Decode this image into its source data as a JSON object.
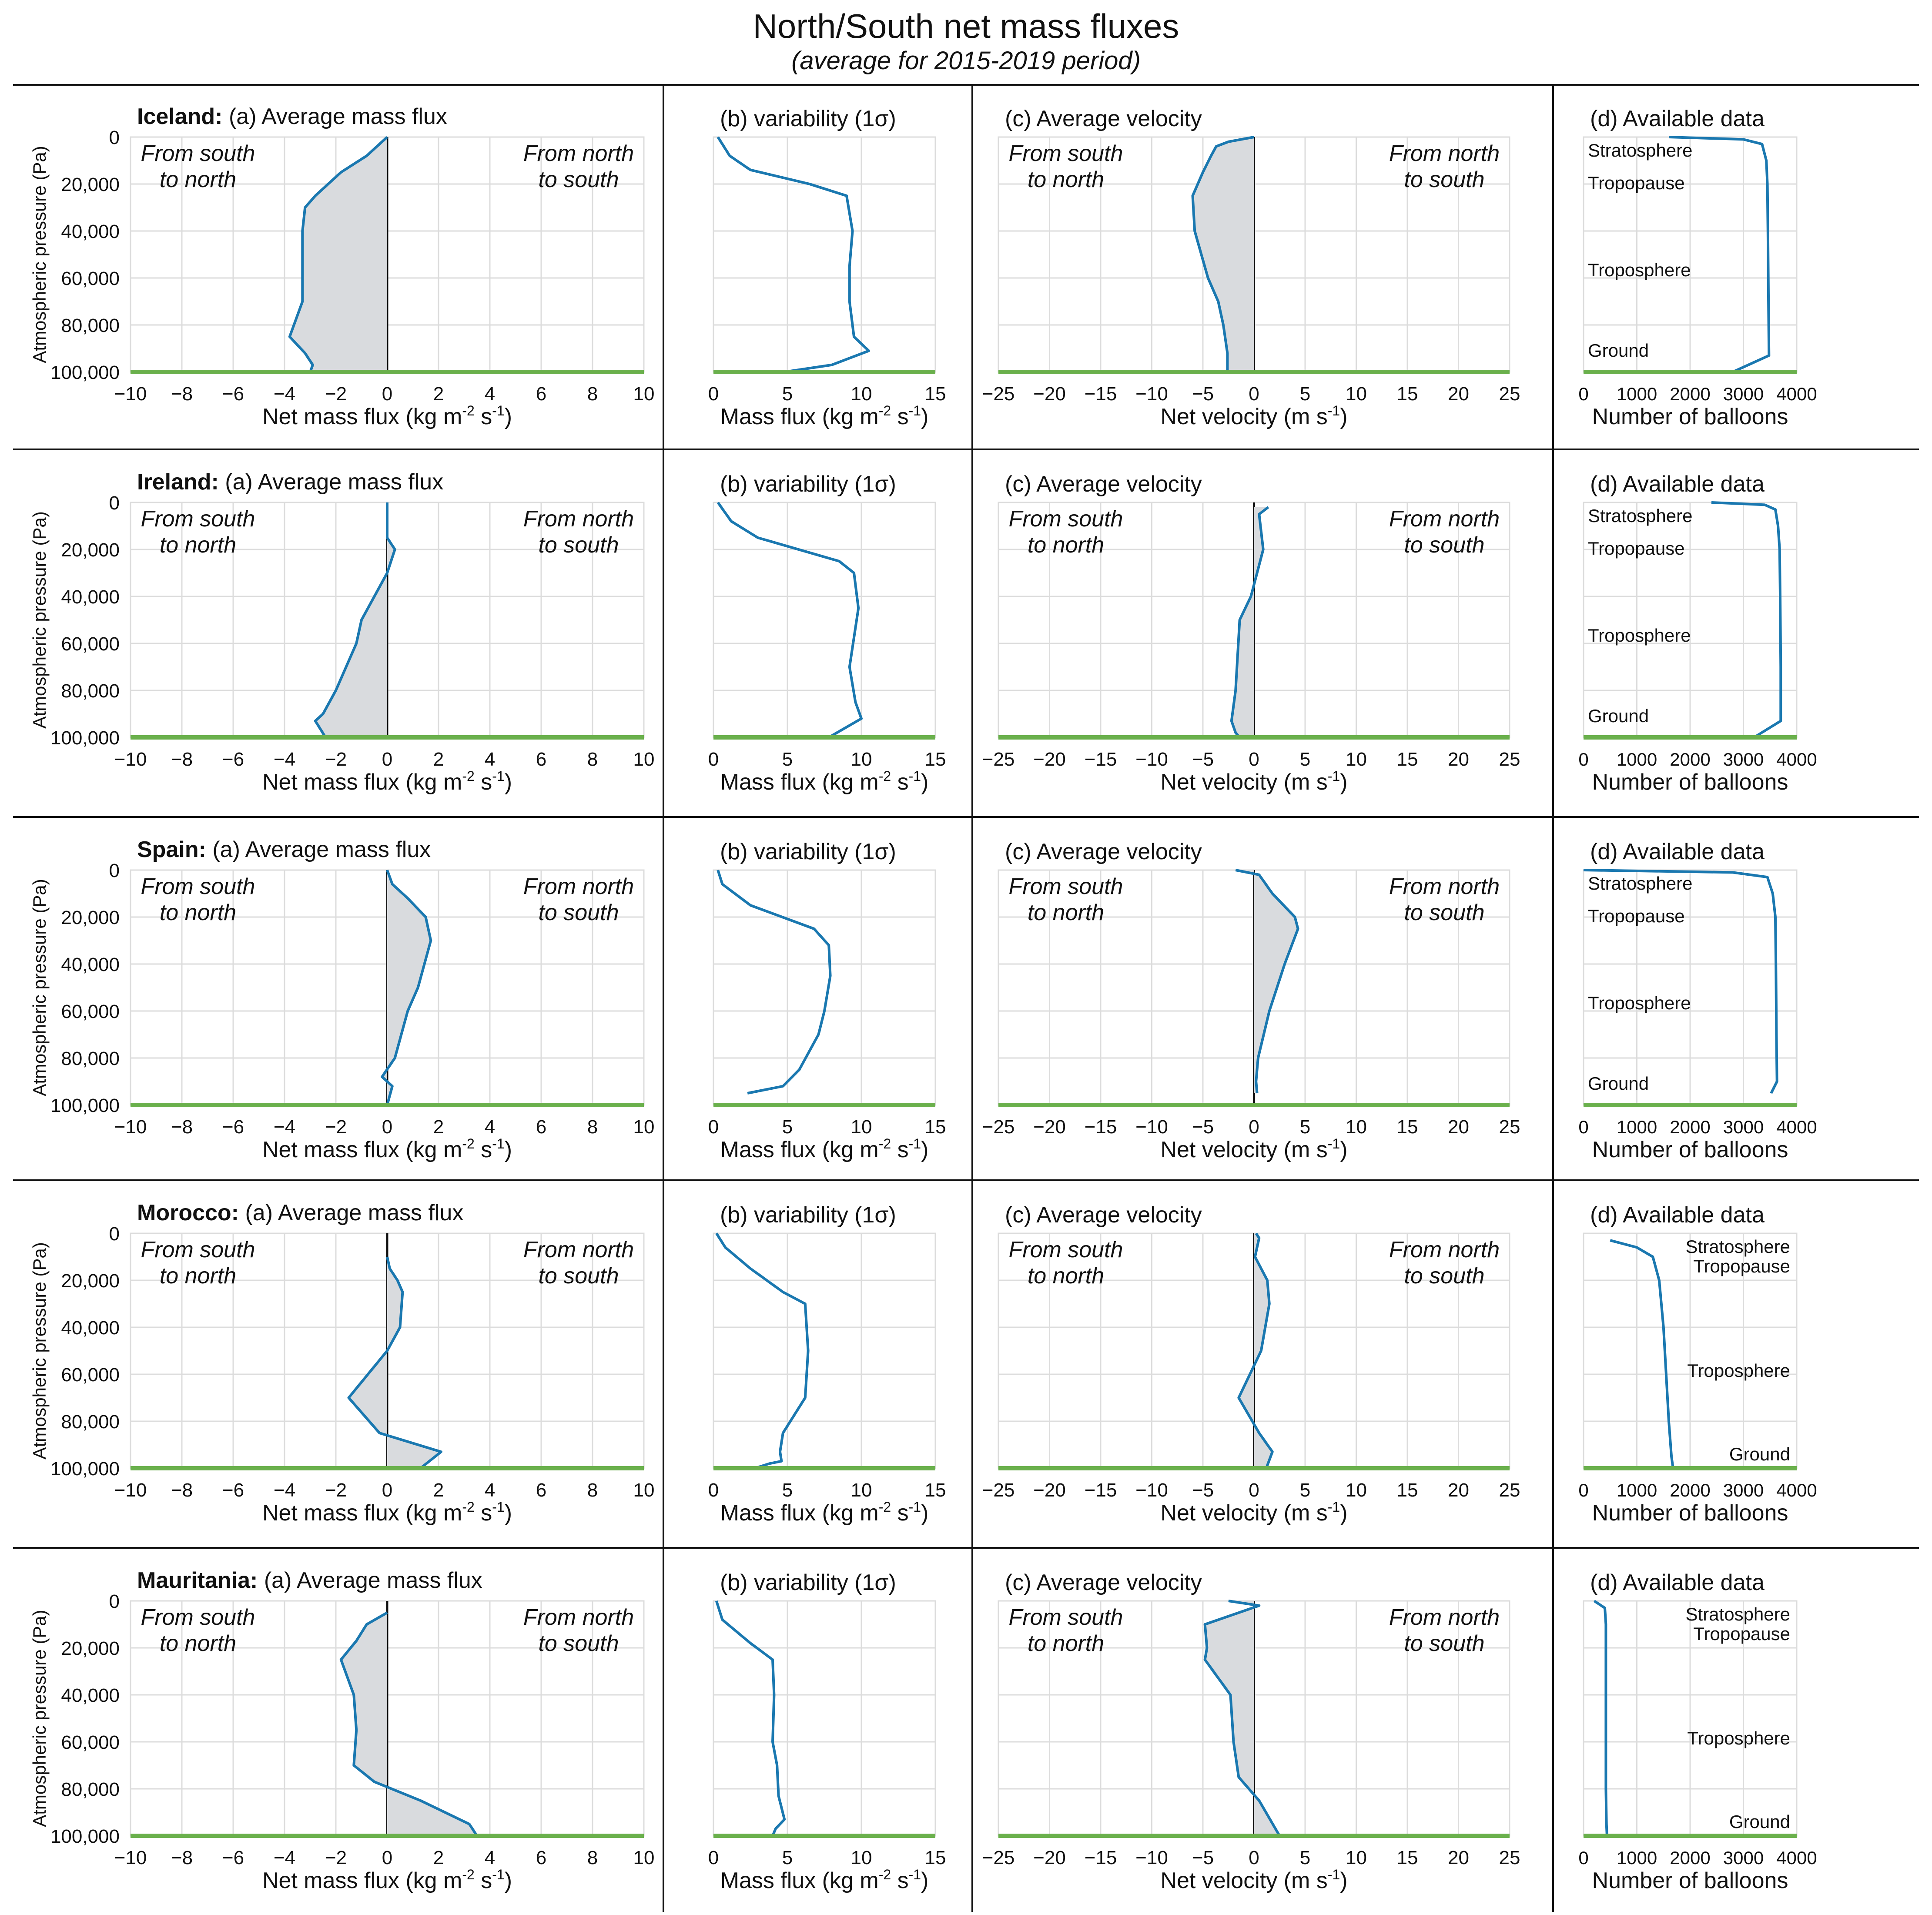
{
  "title": "North/South net mass fluxes",
  "subtitle": "(average for 2015-2019 period)",
  "colors": {
    "line": "#1a78b0",
    "fill": "#d9dbde",
    "ground": "#6ab04c",
    "grid": "#dcdcdc",
    "axis": "#111111",
    "text": "#111111"
  },
  "labels": {
    "ylabel": "Atmospheric pressure (Pa)",
    "from_south": [
      "From south",
      "to north"
    ],
    "from_north": [
      "From north",
      "to south"
    ],
    "panel_b_title": "(b) variability (1σ)",
    "panel_c_title": "(c) Average velocity",
    "panel_d_title": "(d) Available data",
    "panel_a_suffix": "(a) Average mass flux"
  },
  "chart_data": [
    {
      "country": "Iceland:",
      "a": {
        "type": "line",
        "title": "(a) Average mass flux",
        "xlabel": [
          "Net mass flux (kg m",
          "-2",
          " s",
          "-1",
          ")"
        ],
        "xlim": [
          -10,
          10
        ],
        "xticks": [
          "−10",
          "−8",
          "−6",
          "−4",
          "−2",
          "0",
          "2",
          "4",
          "6",
          "8",
          "10"
        ],
        "ylim": [
          0,
          100000
        ],
        "yticks": [
          "0",
          "20,000",
          "40,000",
          "60,000",
          "80,000",
          "100,000"
        ],
        "x": [
          0,
          -0.8,
          -1.8,
          -2.8,
          -3.2,
          -3.3,
          -3.3,
          -3.3,
          -3.8,
          -3.2,
          -2.9,
          -3.0
        ],
        "y": [
          0,
          8000,
          15000,
          25000,
          30000,
          40000,
          55000,
          70000,
          85000,
          92000,
          97000,
          100000
        ]
      },
      "b": {
        "type": "line",
        "title": "(b) variability (1σ)",
        "xlabel": [
          "Mass flux (kg m",
          "-2",
          " s",
          "-1",
          ")"
        ],
        "xlim": [
          0,
          15
        ],
        "xticks": [
          "0",
          "5",
          "10",
          "15"
        ],
        "ylim": [
          0,
          100000
        ],
        "x": [
          0.3,
          1.1,
          2.5,
          6.5,
          9.0,
          9.4,
          9.2,
          9.2,
          9.5,
          10.5,
          8.0,
          4.8
        ],
        "y": [
          0,
          8000,
          14000,
          20000,
          25000,
          40000,
          55000,
          70000,
          85000,
          91000,
          97000,
          100000
        ]
      },
      "c": {
        "type": "line",
        "title": "(c) Average velocity",
        "xlabel": [
          "Net velocity (m s",
          "-1",
          ")"
        ],
        "xlim": [
          -25,
          25
        ],
        "xticks": [
          "−25",
          "−20",
          "−15",
          "−10",
          "−5",
          "0",
          "5",
          "10",
          "15",
          "20",
          "25"
        ],
        "ylim": [
          0,
          100000
        ],
        "x": [
          0,
          -2.5,
          -3.7,
          -4.2,
          -5.0,
          -6.0,
          -5.8,
          -4.5,
          -3.5,
          -3.0,
          -2.6,
          -2.6
        ],
        "y": [
          0,
          2000,
          4000,
          8000,
          15000,
          25000,
          40000,
          60000,
          70000,
          80000,
          92000,
          100000
        ]
      },
      "d": {
        "type": "line",
        "title": "(d) Available data",
        "xlabel": [
          "Number of balloons"
        ],
        "xlim": [
          0,
          4000
        ],
        "xticks": [
          "0",
          "1000",
          "2000",
          "3000",
          "4000"
        ],
        "ylim": [
          0,
          100000
        ],
        "x": [
          1600,
          3000,
          3350,
          3430,
          3450,
          3460,
          3470,
          3480,
          2800
        ],
        "y": [
          0,
          1000,
          3000,
          10000,
          20000,
          40000,
          70000,
          93000,
          100000
        ],
        "layers": [
          "Stratosphere",
          "Tropopause",
          "Troposphere",
          "Ground"
        ],
        "layer_side": "left"
      }
    },
    {
      "country": "Ireland:",
      "a": {
        "type": "line",
        "title": "(a) Average mass flux",
        "xlabel": [
          "Net mass flux (kg m",
          "-2",
          " s",
          "-1",
          ")"
        ],
        "xlim": [
          -10,
          10
        ],
        "xticks": [
          "−10",
          "−8",
          "−6",
          "−4",
          "−2",
          "0",
          "2",
          "4",
          "6",
          "8",
          "10"
        ],
        "ylim": [
          0,
          100000
        ],
        "yticks": [
          "0",
          "20,000",
          "40,000",
          "60,000",
          "80,000",
          "100,000"
        ],
        "x": [
          0,
          0,
          0.3,
          0,
          -0.5,
          -1.0,
          -1.2,
          -2.0,
          -2.5,
          -2.8,
          -2.4
        ],
        "y": [
          0,
          15000,
          20000,
          30000,
          40000,
          50000,
          60000,
          80000,
          90000,
          93000,
          100000
        ]
      },
      "b": {
        "type": "line",
        "title": "(b) variability (1σ)",
        "xlabel": [
          "Mass flux (kg m",
          "-2",
          " s",
          "-1",
          ")"
        ],
        "xlim": [
          0,
          15
        ],
        "xticks": [
          "0",
          "5",
          "10",
          "15"
        ],
        "ylim": [
          0,
          100000
        ],
        "x": [
          0.3,
          1.2,
          3.0,
          8.5,
          9.5,
          9.8,
          9.2,
          9.6,
          10.0,
          7.8
        ],
        "y": [
          0,
          8000,
          15000,
          25000,
          30000,
          45000,
          70000,
          85000,
          92000,
          100000
        ]
      },
      "c": {
        "type": "line",
        "title": "(c) Average velocity",
        "xlabel": [
          "Net velocity (m s",
          "-1",
          ")"
        ],
        "xlim": [
          -25,
          25
        ],
        "xticks": [
          "−25",
          "−20",
          "−15",
          "−10",
          "−5",
          "0",
          "5",
          "10",
          "15",
          "20",
          "25"
        ],
        "ylim": [
          0,
          100000
        ],
        "x": [
          1.4,
          0.5,
          0.9,
          0.3,
          -0.3,
          -1.4,
          -1.6,
          -1.8,
          -2.2,
          -1.8,
          -1.4
        ],
        "y": [
          2000,
          5000,
          20000,
          30000,
          40000,
          50000,
          65000,
          80000,
          93000,
          98000,
          100000
        ]
      },
      "d": {
        "type": "line",
        "title": "(d) Available data",
        "xlabel": [
          "Number of balloons"
        ],
        "xlim": [
          0,
          4000
        ],
        "xticks": [
          "0",
          "1000",
          "2000",
          "3000",
          "4000"
        ],
        "ylim": [
          0,
          100000
        ],
        "x": [
          2400,
          3400,
          3600,
          3650,
          3680,
          3690,
          3700,
          3700,
          3200
        ],
        "y": [
          0,
          1000,
          3000,
          10000,
          20000,
          40000,
          70000,
          93000,
          100000
        ],
        "layers": [
          "Stratosphere",
          "Tropopause",
          "Troposphere",
          "Ground"
        ],
        "layer_side": "left"
      }
    },
    {
      "country": "Spain:",
      "a": {
        "type": "line",
        "title": "(a) Average mass flux",
        "xlabel": [
          "Net mass flux (kg m",
          "-2",
          " s",
          "-1",
          ")"
        ],
        "xlim": [
          -10,
          10
        ],
        "xticks": [
          "−10",
          "−8",
          "−6",
          "−4",
          "−2",
          "0",
          "2",
          "4",
          "6",
          "8",
          "10"
        ],
        "ylim": [
          0,
          100000
        ],
        "yticks": [
          "0",
          "20,000",
          "40,000",
          "60,000",
          "80,000",
          "100,000"
        ],
        "x": [
          0,
          0.2,
          0.8,
          1.5,
          1.7,
          1.2,
          0.8,
          0.3,
          -0.2,
          0.2,
          0
        ],
        "y": [
          0,
          6000,
          12000,
          20000,
          30000,
          50000,
          60000,
          80000,
          88000,
          92000,
          100000
        ]
      },
      "b": {
        "type": "line",
        "title": "(b) variability (1σ)",
        "xlabel": [
          "Mass flux (kg m",
          "-2",
          " s",
          "-1",
          ")"
        ],
        "xlim": [
          0,
          15
        ],
        "xticks": [
          "0",
          "5",
          "10",
          "15"
        ],
        "ylim": [
          0,
          100000
        ],
        "x": [
          0.3,
          0.6,
          2.5,
          6.8,
          7.8,
          7.9,
          7.5,
          7.1,
          5.8,
          4.7,
          2.3
        ],
        "y": [
          0,
          6000,
          15000,
          25000,
          32000,
          45000,
          60000,
          70000,
          85000,
          92000,
          95000
        ]
      },
      "c": {
        "type": "line",
        "title": "(c) Average velocity",
        "xlabel": [
          "Net velocity (m s",
          "-1",
          ")"
        ],
        "xlim": [
          -25,
          25
        ],
        "xticks": [
          "−25",
          "−20",
          "−15",
          "−10",
          "−5",
          "0",
          "5",
          "10",
          "15",
          "20",
          "25"
        ],
        "ylim": [
          0,
          100000
        ],
        "x": [
          -1.8,
          0.5,
          1.8,
          4.0,
          4.3,
          3.0,
          1.5,
          0.4,
          0.2,
          0.3
        ],
        "y": [
          0,
          2000,
          10000,
          20000,
          25000,
          40000,
          60000,
          80000,
          90000,
          95000
        ]
      },
      "d": {
        "type": "line",
        "title": "(d) Available data",
        "xlabel": [
          "Number of balloons"
        ],
        "xlim": [
          0,
          4000
        ],
        "xticks": [
          "0",
          "1000",
          "2000",
          "3000",
          "4000"
        ],
        "ylim": [
          0,
          100000
        ],
        "x": [
          0,
          2800,
          3450,
          3550,
          3600,
          3610,
          3620,
          3630,
          3520
        ],
        "y": [
          0,
          1000,
          3000,
          10000,
          20000,
          40000,
          70000,
          90000,
          95000
        ],
        "layers": [
          "Stratosphere",
          "Tropopause",
          "Troposphere",
          "Ground"
        ],
        "layer_side": "left"
      }
    },
    {
      "country": "Morocco:",
      "a": {
        "type": "line",
        "title": "(a) Average mass flux",
        "xlabel": [
          "Net mass flux (kg m",
          "-2",
          " s",
          "-1",
          ")"
        ],
        "xlim": [
          -10,
          10
        ],
        "xticks": [
          "−10",
          "−8",
          "−6",
          "−4",
          "−2",
          "0",
          "2",
          "4",
          "6",
          "8",
          "10"
        ],
        "ylim": [
          0,
          100000
        ],
        "yticks": [
          "0",
          "20,000",
          "40,000",
          "60,000",
          "80,000",
          "100,000"
        ],
        "x": [
          0,
          0.1,
          0.4,
          0.6,
          0.5,
          0,
          -1.5,
          -0.3,
          2.1,
          1.3
        ],
        "y": [
          10000,
          15000,
          20000,
          25000,
          40000,
          50000,
          70000,
          85000,
          93000,
          100000
        ]
      },
      "b": {
        "type": "line",
        "title": "(b) variability (1σ)",
        "xlabel": [
          "Mass flux (kg m",
          "-2",
          " s",
          "-1",
          ")"
        ],
        "xlim": [
          0,
          15
        ],
        "xticks": [
          "0",
          "5",
          "10",
          "15"
        ],
        "ylim": [
          0,
          100000
        ],
        "x": [
          0.2,
          0.8,
          2.5,
          4.7,
          6.2,
          6.4,
          6.2,
          4.7,
          4.5,
          4.6,
          3.8,
          2.8
        ],
        "y": [
          0,
          6000,
          15000,
          25000,
          30000,
          50000,
          70000,
          85000,
          93000,
          97000,
          98000,
          100000
        ]
      },
      "c": {
        "type": "line",
        "title": "(c) Average velocity",
        "xlabel": [
          "Net velocity (m s",
          "-1",
          ")"
        ],
        "xlim": [
          -25,
          25
        ],
        "xticks": [
          "−25",
          "−20",
          "−15",
          "−10",
          "−5",
          "0",
          "5",
          "10",
          "15",
          "20",
          "25"
        ],
        "ylim": [
          0,
          100000
        ],
        "x": [
          0.2,
          0.5,
          0.1,
          1.3,
          1.5,
          0.7,
          -1.5,
          0.5,
          1.8,
          1.2
        ],
        "y": [
          0,
          2000,
          10000,
          20000,
          30000,
          50000,
          70000,
          85000,
          93000,
          100000
        ]
      },
      "d": {
        "type": "line",
        "title": "(d) Available data",
        "xlabel": [
          "Number of balloons"
        ],
        "xlim": [
          0,
          4000
        ],
        "xticks": [
          "0",
          "1000",
          "2000",
          "3000",
          "4000"
        ],
        "ylim": [
          0,
          100000
        ],
        "x": [
          500,
          1000,
          1300,
          1420,
          1500,
          1550,
          1600,
          1650,
          1680
        ],
        "y": [
          3000,
          6000,
          10000,
          20000,
          40000,
          60000,
          80000,
          95000,
          100000
        ],
        "layers": [
          "Stratosphere",
          "Tropopause",
          "Troposphere",
          "Ground"
        ],
        "layer_side": "right"
      }
    },
    {
      "country": "Mauritania:",
      "a": {
        "type": "line",
        "title": "(a) Average mass flux",
        "xlabel": [
          "Net mass flux (kg m",
          "-2",
          " s",
          "-1",
          ")"
        ],
        "xlim": [
          -10,
          10
        ],
        "xticks": [
          "−10",
          "−8",
          "−6",
          "−4",
          "−2",
          "0",
          "2",
          "4",
          "6",
          "8",
          "10"
        ],
        "ylim": [
          0,
          100000
        ],
        "yticks": [
          "0",
          "20,000",
          "40,000",
          "60,000",
          "80,000",
          "100,000"
        ],
        "x": [
          0,
          -0.8,
          -1.2,
          -1.8,
          -1.3,
          -1.2,
          -1.3,
          -0.5,
          1.3,
          3.2,
          3.5
        ],
        "y": [
          5000,
          10000,
          17000,
          25000,
          40000,
          55000,
          70000,
          77000,
          85000,
          95000,
          100000
        ]
      },
      "b": {
        "type": "line",
        "title": "(b) variability (1σ)",
        "xlabel": [
          "Mass flux (kg m",
          "-2",
          " s",
          "-1",
          ")"
        ],
        "xlim": [
          0,
          15
        ],
        "xticks": [
          "0",
          "5",
          "10",
          "15"
        ],
        "ylim": [
          0,
          100000
        ],
        "x": [
          0.2,
          0.6,
          2.5,
          4.0,
          4.1,
          4.0,
          4.3,
          4.4,
          4.8,
          4.2,
          4.0
        ],
        "y": [
          0,
          8000,
          18000,
          25000,
          40000,
          60000,
          70000,
          83000,
          93000,
          97000,
          100000
        ]
      },
      "c": {
        "type": "line",
        "title": "(c) Average velocity",
        "xlabel": [
          "Net velocity (m s",
          "-1",
          ")"
        ],
        "xlim": [
          -25,
          25
        ],
        "xticks": [
          "−25",
          "−20",
          "−15",
          "−10",
          "−5",
          "0",
          "5",
          "10",
          "15",
          "20",
          "25"
        ],
        "ylim": [
          0,
          100000
        ],
        "x": [
          -2.5,
          0.5,
          -4.8,
          -4.6,
          -4.8,
          -2.3,
          -2.0,
          -1.5,
          0.5,
          2.5
        ],
        "y": [
          0,
          2000,
          10000,
          20000,
          25000,
          40000,
          60000,
          75000,
          85000,
          100000
        ]
      },
      "d": {
        "type": "line",
        "title": "(d) Available data",
        "xlabel": [
          "Number of balloons"
        ],
        "xlim": [
          0,
          4000
        ],
        "xticks": [
          "0",
          "1000",
          "2000",
          "3000",
          "4000"
        ],
        "ylim": [
          0,
          100000
        ],
        "x": [
          200,
          400,
          420,
          420,
          420,
          420,
          430,
          440
        ],
        "y": [
          0,
          3000,
          10000,
          30000,
          60000,
          80000,
          95000,
          100000
        ],
        "layers": [
          "Stratosphere",
          "Tropopause",
          "Troposphere",
          "Ground"
        ],
        "layer_side": "right"
      }
    }
  ]
}
